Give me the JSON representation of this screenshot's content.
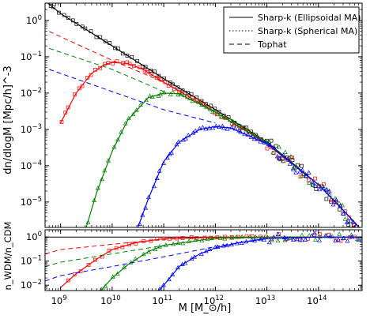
{
  "figure": {
    "legend_position": "top-right",
    "legend": [
      {
        "label": "Sharp-k (Ellipsoidal MA)",
        "style": "solid"
      },
      {
        "label": "Sharp-k (Spherical MA)",
        "style": "dotted"
      },
      {
        "label": "Tophat",
        "style": "dashed"
      }
    ],
    "colors": {
      "cdm": "#000000",
      "red": "#ff0000",
      "green": "#008000",
      "blue": "#0000ff"
    }
  },
  "chart_data": [
    {
      "type": "line",
      "name": "mass-function",
      "xlabel": "",
      "ylabel": "dn/dlogM [Mpc/h]^-3",
      "xscale": "log",
      "yscale": "log",
      "xlim": [
        500000000.0,
        700000000000000.0
      ],
      "ylim": [
        2e-06,
        3
      ],
      "x_ticks": [
        {
          "v": 1000000000.0,
          "t": "10^9"
        },
        {
          "v": 10000000000.0,
          "t": "10^10"
        },
        {
          "v": 100000000000.0,
          "t": "10^11"
        },
        {
          "v": 1000000000000.0,
          "t": "10^12"
        },
        {
          "v": 10000000000000.0,
          "t": "10^13"
        },
        {
          "v": 100000000000000.0,
          "t": "10^14"
        }
      ],
      "y_ticks": [
        {
          "v": 1,
          "t": "10^0"
        },
        {
          "v": 0.1,
          "t": "10^-1"
        },
        {
          "v": 0.01,
          "t": "10^-2"
        },
        {
          "v": 0.001,
          "t": "10^-3"
        },
        {
          "v": 0.0001,
          "t": "10^-4"
        },
        {
          "v": 1e-05,
          "t": "10^-5"
        }
      ],
      "series": [
        {
          "color": "#000000",
          "marker": "square",
          "curve_x": [
            500000000.0,
            1000000000.0,
            10000000000.0,
            100000000000.0,
            1000000000000.0,
            10000000000000.0,
            100000000000000.0,
            300000000000000.0,
            700000000000000.0
          ],
          "curve_y": [
            3.5,
            1.55,
            0.2,
            0.025,
            0.0035,
            0.00045,
            3e-05,
            6e-06,
            8e-07
          ]
        },
        {
          "color": "#ff0000",
          "marker": "square",
          "curve_x": [
            1000000000.0,
            2000000000.0,
            4000000000.0,
            7000000000.0,
            10000000000.0,
            20000000000.0,
            40000000000.0,
            100000000000.0,
            1000000000000.0,
            10000000000000.0,
            100000000000000.0,
            300000000000000.0,
            700000000000000.0
          ],
          "curve_y": [
            0.0015,
            0.01,
            0.035,
            0.06,
            0.07,
            0.065,
            0.045,
            0.02,
            0.003,
            0.0004,
            3e-05,
            6e-06,
            8e-07
          ],
          "dashed_x": [
            600000000.0,
            10000000000.0,
            100000000000.0
          ],
          "dashed_y": [
            0.5,
            0.08,
            0.02
          ]
        },
        {
          "color": "#008000",
          "marker": "triangle",
          "curve_x": [
            3000000000.0,
            5000000000.0,
            10000000000.0,
            20000000000.0,
            50000000000.0,
            100000000000.0,
            200000000000.0,
            1000000000000.0,
            10000000000000.0,
            100000000000000.0,
            300000000000000.0,
            700000000000000.0
          ],
          "curve_y": [
            1.5e-06,
            1.8e-05,
            0.00025,
            0.0018,
            0.0075,
            0.01,
            0.0095,
            0.003,
            0.00042,
            3e-05,
            6e-06,
            8e-07
          ],
          "dashed_x": [
            600000000.0,
            10000000000.0,
            100000000000.0
          ],
          "dashed_y": [
            0.17,
            0.045,
            0.011
          ]
        },
        {
          "color": "#0000ff",
          "marker": "triangle",
          "curve_x": [
            30000000000.0,
            50000000000.0,
            100000000000.0,
            200000000000.0,
            500000000000.0,
            1000000000000.0,
            2000000000000.0,
            10000000000000.0,
            100000000000000.0,
            300000000000000.0,
            700000000000000.0
          ],
          "curve_y": [
            1.5e-06,
            1.2e-05,
            0.00013,
            0.00045,
            0.001,
            0.0012,
            0.0011,
            0.0004,
            3e-05,
            6e-06,
            8e-07
          ],
          "dashed_x": [
            600000000.0,
            10000000000.0,
            100000000000.0,
            1000000000000.0
          ],
          "dashed_y": [
            0.045,
            0.011,
            0.0035,
            0.0015
          ]
        }
      ]
    },
    {
      "type": "line",
      "name": "ratio",
      "xlabel": "M [M_⊙/h]",
      "ylabel": "n_WDM/n_CDM",
      "xscale": "log",
      "yscale": "log",
      "xlim": [
        500000000.0,
        700000000000000.0
      ],
      "ylim": [
        0.006,
        2
      ],
      "x_ticks": [
        {
          "v": 1000000000.0,
          "t": "10^9"
        },
        {
          "v": 10000000000.0,
          "t": "10^10"
        },
        {
          "v": 100000000000.0,
          "t": "10^11"
        },
        {
          "v": 1000000000000.0,
          "t": "10^12"
        },
        {
          "v": 10000000000000.0,
          "t": "10^13"
        },
        {
          "v": 100000000000000.0,
          "t": "10^14"
        }
      ],
      "y_ticks": [
        {
          "v": 1,
          "t": "10^0"
        },
        {
          "v": 0.1,
          "t": "10^-1"
        },
        {
          "v": 0.01,
          "t": "10^-2"
        }
      ],
      "reference_line": 1,
      "series": [
        {
          "color": "#ff0000",
          "curve_x": [
            1000000000.0,
            2000000000.0,
            5000000000.0,
            10000000000.0,
            30000000000.0,
            100000000000.0,
            1000000000000.0,
            10000000000000.0,
            100000000000000.0,
            700000000000000.0
          ],
          "curve_y": [
            0.008,
            0.03,
            0.12,
            0.3,
            0.6,
            0.85,
            0.98,
            1,
            1,
            1
          ],
          "dashed_x": [
            500000000.0,
            1000000000.0,
            10000000000.0,
            100000000000.0,
            1000000000000.0
          ],
          "dashed_y": [
            0.2,
            0.3,
            0.5,
            0.8,
            1
          ]
        },
        {
          "color": "#008000",
          "curve_x": [
            6000000000.0,
            10000000000.0,
            20000000000.0,
            50000000000.0,
            100000000000.0,
            1000000000000.0,
            10000000000000.0,
            100000000000000.0,
            700000000000000.0
          ],
          "curve_y": [
            0.006,
            0.02,
            0.07,
            0.25,
            0.45,
            0.9,
            1,
            1,
            1
          ],
          "dashed_x": [
            500000000.0,
            1000000000.0,
            10000000000.0,
            100000000000.0,
            1000000000000.0
          ],
          "dashed_y": [
            0.06,
            0.09,
            0.2,
            0.45,
            0.9
          ]
        },
        {
          "color": "#0000ff",
          "curve_x": [
            80000000000.0,
            100000000000.0,
            200000000000.0,
            500000000000.0,
            1000000000000.0,
            3000000000000.0,
            10000000000000.0,
            100000000000000.0,
            700000000000000.0
          ],
          "curve_y": [
            0.006,
            0.01,
            0.06,
            0.2,
            0.35,
            0.6,
            0.85,
            1,
            1
          ],
          "dashed_x": [
            500000000.0,
            1000000000.0,
            10000000000.0,
            100000000000.0,
            1000000000000.0,
            10000000000000.0
          ],
          "dashed_y": [
            0.015,
            0.025,
            0.06,
            0.15,
            0.4,
            0.9
          ]
        }
      ]
    }
  ]
}
